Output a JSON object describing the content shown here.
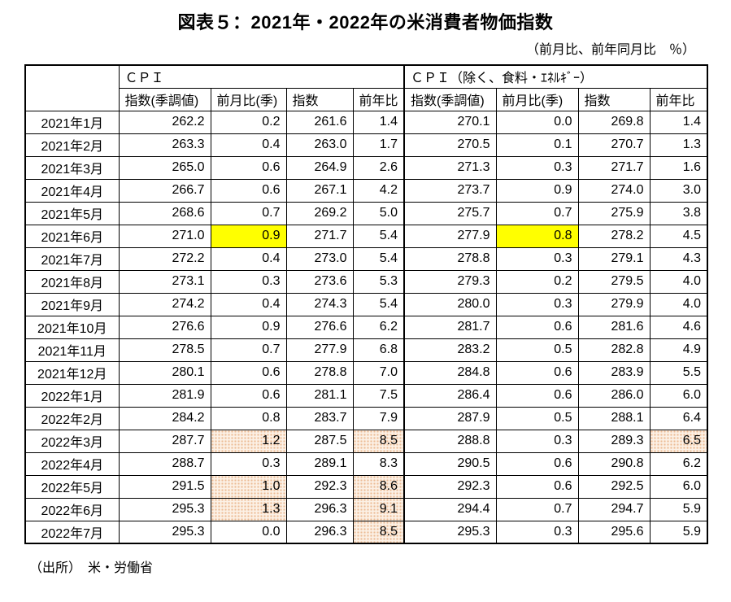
{
  "title": "図表５：2021年・2022年の米消費者物価指数",
  "unit_note": "（前月比、前年同月比　％）",
  "source_note": "（出所）　米・労働省",
  "colors": {
    "highlight_yellow": "#FFFF00",
    "highlight_pink_dot": "#ECBC96",
    "highlight_pink_bg": "#FCF1E6",
    "border": "#000000",
    "text": "#000000",
    "background": "#FFFFFF"
  },
  "table": {
    "group_headers": [
      {
        "label": "ＣＰＩ"
      },
      {
        "label": "ＣＰＩ（除く、食料・ｴﾈﾙｷﾞｰ）"
      }
    ],
    "column_headers": [
      "指数(季調値)",
      "前月比(季)",
      "指数",
      "前年比",
      "指数(季調値)",
      "前月比(季)",
      "指数",
      "前年比"
    ],
    "rows": [
      {
        "month": "2021年1月",
        "values": [
          "262.2",
          "0.2",
          "261.6",
          "1.4",
          "270.1",
          "0.0",
          "269.8",
          "1.4"
        ],
        "hl": []
      },
      {
        "month": "2021年2月",
        "values": [
          "263.3",
          "0.4",
          "263.0",
          "1.7",
          "270.5",
          "0.1",
          "270.7",
          "1.3"
        ],
        "hl": []
      },
      {
        "month": "2021年3月",
        "values": [
          "265.0",
          "0.6",
          "264.9",
          "2.6",
          "271.3",
          "0.3",
          "271.7",
          "1.6"
        ],
        "hl": []
      },
      {
        "month": "2021年4月",
        "values": [
          "266.7",
          "0.6",
          "267.1",
          "4.2",
          "273.7",
          "0.9",
          "274.0",
          "3.0"
        ],
        "hl": []
      },
      {
        "month": "2021年5月",
        "values": [
          "268.6",
          "0.7",
          "269.2",
          "5.0",
          "275.7",
          "0.7",
          "275.9",
          "3.8"
        ],
        "hl": []
      },
      {
        "month": "2021年6月",
        "values": [
          "271.0",
          "0.9",
          "271.7",
          "5.4",
          "277.9",
          "0.8",
          "278.2",
          "4.5"
        ],
        "hl": [
          "",
          "yellow",
          "",
          "",
          "",
          "yellow",
          "",
          ""
        ]
      },
      {
        "month": "2021年7月",
        "values": [
          "272.2",
          "0.4",
          "273.0",
          "5.4",
          "278.8",
          "0.3",
          "279.1",
          "4.3"
        ],
        "hl": []
      },
      {
        "month": "2021年8月",
        "values": [
          "273.1",
          "0.3",
          "273.6",
          "5.3",
          "279.3",
          "0.2",
          "279.5",
          "4.0"
        ],
        "hl": []
      },
      {
        "month": "2021年9月",
        "values": [
          "274.2",
          "0.4",
          "274.3",
          "5.4",
          "280.0",
          "0.3",
          "279.9",
          "4.0"
        ],
        "hl": []
      },
      {
        "month": "2021年10月",
        "values": [
          "276.6",
          "0.9",
          "276.6",
          "6.2",
          "281.7",
          "0.6",
          "281.6",
          "4.6"
        ],
        "hl": []
      },
      {
        "month": "2021年11月",
        "values": [
          "278.5",
          "0.7",
          "277.9",
          "6.8",
          "283.2",
          "0.5",
          "282.8",
          "4.9"
        ],
        "hl": []
      },
      {
        "month": "2021年12月",
        "values": [
          "280.1",
          "0.6",
          "278.8",
          "7.0",
          "284.8",
          "0.6",
          "283.9",
          "5.5"
        ],
        "hl": []
      },
      {
        "month": "2022年1月",
        "values": [
          "281.9",
          "0.6",
          "281.1",
          "7.5",
          "286.4",
          "0.6",
          "286.0",
          "6.0"
        ],
        "hl": []
      },
      {
        "month": "2022年2月",
        "values": [
          "284.2",
          "0.8",
          "283.7",
          "7.9",
          "287.9",
          "0.5",
          "288.1",
          "6.4"
        ],
        "hl": []
      },
      {
        "month": "2022年3月",
        "values": [
          "287.7",
          "1.2",
          "287.5",
          "8.5",
          "288.8",
          "0.3",
          "289.3",
          "6.5"
        ],
        "hl": [
          "",
          "pink",
          "",
          "pink",
          "",
          "",
          "",
          "pink"
        ]
      },
      {
        "month": "2022年4月",
        "values": [
          "288.7",
          "0.3",
          "289.1",
          "8.3",
          "290.5",
          "0.6",
          "290.8",
          "6.2"
        ],
        "hl": []
      },
      {
        "month": "2022年5月",
        "values": [
          "291.5",
          "1.0",
          "292.3",
          "8.6",
          "292.3",
          "0.6",
          "292.5",
          "6.0"
        ],
        "hl": [
          "",
          "pink",
          "",
          "pink",
          "",
          "",
          "",
          ""
        ]
      },
      {
        "month": "2022年6月",
        "values": [
          "295.3",
          "1.3",
          "296.3",
          "9.1",
          "294.4",
          "0.7",
          "294.7",
          "5.9"
        ],
        "hl": [
          "",
          "pink",
          "",
          "pink",
          "",
          "",
          "",
          ""
        ]
      },
      {
        "month": "2022年7月",
        "values": [
          "295.3",
          "0.0",
          "296.3",
          "8.5",
          "295.3",
          "0.3",
          "295.6",
          "5.9"
        ],
        "hl": [
          "",
          "",
          "",
          "pink",
          "",
          "",
          "",
          ""
        ]
      }
    ]
  }
}
